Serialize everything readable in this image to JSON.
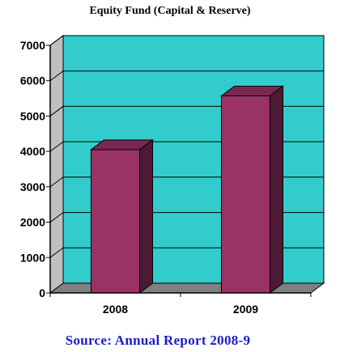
{
  "chart_data": {
    "type": "bar",
    "title": "Equity Fund (Capital & Reserve)",
    "categories": [
      "2008",
      "2009"
    ],
    "values": [
      4050,
      5570
    ],
    "ylim": [
      0,
      7000
    ],
    "yticks": [
      0,
      1000,
      2000,
      3000,
      4000,
      5000,
      6000,
      7000
    ],
    "ytick_labels": [
      "0",
      "1000",
      "2000",
      "3000",
      "4000",
      "5000",
      "6000",
      "7000"
    ],
    "grid": true,
    "legend": "none",
    "xlabel": "",
    "ylabel": ""
  },
  "colors": {
    "plot_back": "#33cccc",
    "side_wall": "#c0c0c0",
    "floor": "#808080",
    "bar_front": "#993366",
    "bar_top": "#7a2852",
    "bar_side": "#4d1a36",
    "grid": "#000000"
  },
  "footer": {
    "source": "Source: Annual Report 2008-9"
  }
}
